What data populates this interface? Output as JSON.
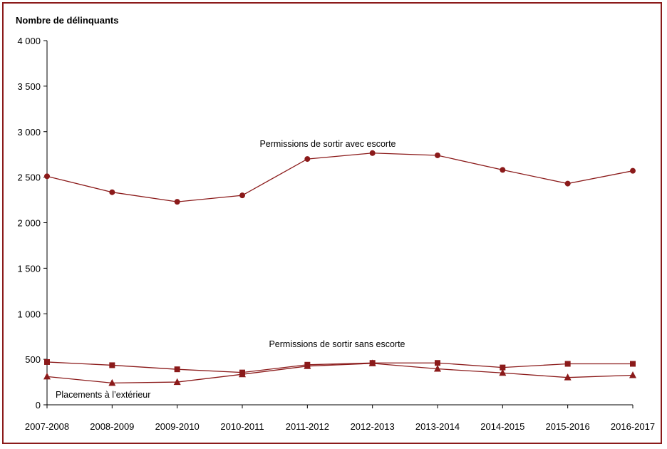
{
  "chart_data": {
    "type": "line",
    "title": "",
    "ylabel": "Nombre de délinquants",
    "xlabel": "",
    "categories": [
      "2007-2008",
      "2008-2009",
      "2009-2010",
      "2010-2011",
      "2011-2012",
      "2012-2013",
      "2013-2014",
      "2014-2015",
      "2015-2016",
      "2016-2017"
    ],
    "yticks": [
      "0",
      "500",
      "1 000",
      "1 500",
      "2 000",
      "2 500",
      "3 000",
      "3 500",
      "4 000"
    ],
    "ylim": [
      0,
      4000
    ],
    "grid": false,
    "legend": "none",
    "series": [
      {
        "name": "Permissions de sortir avec escorte",
        "marker": "circle",
        "color": "#8b1a1a",
        "values": [
          2510,
          2335,
          2230,
          2300,
          2700,
          2765,
          2740,
          2580,
          2430,
          2570
        ]
      },
      {
        "name": "Permissions de sortir sans escorte",
        "marker": "square",
        "color": "#8b1a1a",
        "values": [
          470,
          435,
          390,
          355,
          440,
          460,
          460,
          410,
          450,
          450
        ]
      },
      {
        "name": "Placements à l’extérieur",
        "marker": "triangle",
        "color": "#8b1a1a",
        "values": [
          310,
          240,
          250,
          335,
          425,
          455,
          395,
          350,
          300,
          325
        ]
      }
    ]
  }
}
